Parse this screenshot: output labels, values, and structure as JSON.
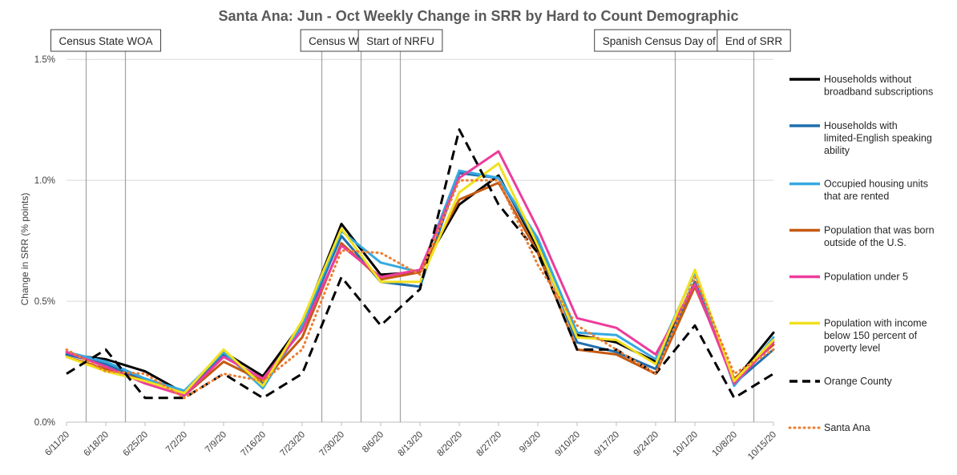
{
  "chart_data": {
    "type": "line",
    "title": "Santa Ana: Jun - Oct Weekly Change in SRR by Hard to Count Demographic",
    "xlabel": "",
    "ylabel": "Change in SRR (% points)",
    "ylim": [
      0,
      1.6
    ],
    "yticks": [
      0,
      0.5,
      1.0,
      1.5
    ],
    "yticklabels": [
      "0.0%",
      "0.5%",
      "1.0%",
      "1.5%"
    ],
    "grid": true,
    "legend_position": "right",
    "categories": [
      "6/11/20",
      "6/18/20",
      "6/25/20",
      "7/2/20",
      "7/9/20",
      "7/16/20",
      "7/23/20",
      "7/30/20",
      "8/6/20",
      "8/13/20",
      "8/20/20",
      "8/27/20",
      "9/3/20",
      "9/10/20",
      "9/17/20",
      "9/24/20",
      "10/1/20",
      "10/8/20",
      "10/15/20"
    ],
    "series": [
      {
        "name": "Households without broadband subscriptions",
        "color": "#000000",
        "style": "solid",
        "values": [
          0.28,
          0.26,
          0.21,
          0.12,
          0.29,
          0.19,
          0.41,
          0.82,
          0.61,
          0.62,
          0.9,
          1.02,
          0.72,
          0.36,
          0.33,
          0.25,
          0.58,
          0.17,
          0.37
        ]
      },
      {
        "name": "Households with limited-English speaking ability",
        "color": "#1f6fae",
        "style": "solid",
        "values": [
          0.28,
          0.24,
          0.17,
          0.12,
          0.28,
          0.16,
          0.39,
          0.77,
          0.58,
          0.56,
          1.03,
          1.01,
          0.74,
          0.33,
          0.29,
          0.22,
          0.58,
          0.16,
          0.3
        ]
      },
      {
        "name": "Occupied housing units that are rented",
        "color": "#35a9e0",
        "style": "solid",
        "values": [
          0.29,
          0.25,
          0.18,
          0.13,
          0.29,
          0.14,
          0.4,
          0.79,
          0.66,
          0.62,
          1.04,
          1.01,
          0.76,
          0.37,
          0.36,
          0.26,
          0.62,
          0.15,
          0.35
        ]
      },
      {
        "name": "Population that was born outside of the U.S.",
        "color": "#c55a11",
        "style": "solid",
        "values": [
          0.27,
          0.22,
          0.17,
          0.11,
          0.25,
          0.17,
          0.35,
          0.74,
          0.59,
          0.62,
          0.92,
          0.99,
          0.7,
          0.3,
          0.28,
          0.2,
          0.56,
          0.18,
          0.32
        ]
      },
      {
        "name": "Population under 5",
        "color": "#ec3d9c",
        "style": "solid",
        "values": [
          0.29,
          0.23,
          0.16,
          0.11,
          0.27,
          0.18,
          0.38,
          0.73,
          0.6,
          0.63,
          1.01,
          1.12,
          0.8,
          0.43,
          0.39,
          0.28,
          0.57,
          0.16,
          0.33
        ]
      },
      {
        "name": "Population with income below 150 percent of poverty level",
        "color": "#f2e01e",
        "style": "solid",
        "values": [
          0.27,
          0.21,
          0.17,
          0.12,
          0.3,
          0.15,
          0.42,
          0.8,
          0.58,
          0.58,
          0.95,
          1.07,
          0.73,
          0.35,
          0.34,
          0.24,
          0.63,
          0.17,
          0.34
        ]
      },
      {
        "name": "Orange County",
        "color": "#000000",
        "style": "dashed",
        "values": [
          0.2,
          0.3,
          0.1,
          0.1,
          0.2,
          0.1,
          0.2,
          0.6,
          0.4,
          0.55,
          1.21,
          0.9,
          0.7,
          0.3,
          0.3,
          0.2,
          0.4,
          0.1,
          0.2
        ]
      },
      {
        "name": "Santa Ana",
        "color": "#ed7d31",
        "style": "dotted",
        "values": [
          0.3,
          0.21,
          0.2,
          0.1,
          0.2,
          0.17,
          0.3,
          0.71,
          0.7,
          0.61,
          1.0,
          1.0,
          0.65,
          0.4,
          0.3,
          0.2,
          0.6,
          0.2,
          0.3
        ]
      }
    ],
    "annotations": [
      {
        "label": "Census State WOA",
        "lines_at": [
          1,
          2
        ]
      },
      {
        "label": "Census WOA",
        "lines_at": [
          7,
          8
        ]
      },
      {
        "label": "Start of NRFU",
        "lines_at": [
          9
        ]
      },
      {
        "label": "Spanish Census Day of Action",
        "lines_at": [
          16
        ]
      },
      {
        "label": "End of SRR",
        "lines_at": [
          18
        ]
      }
    ]
  }
}
